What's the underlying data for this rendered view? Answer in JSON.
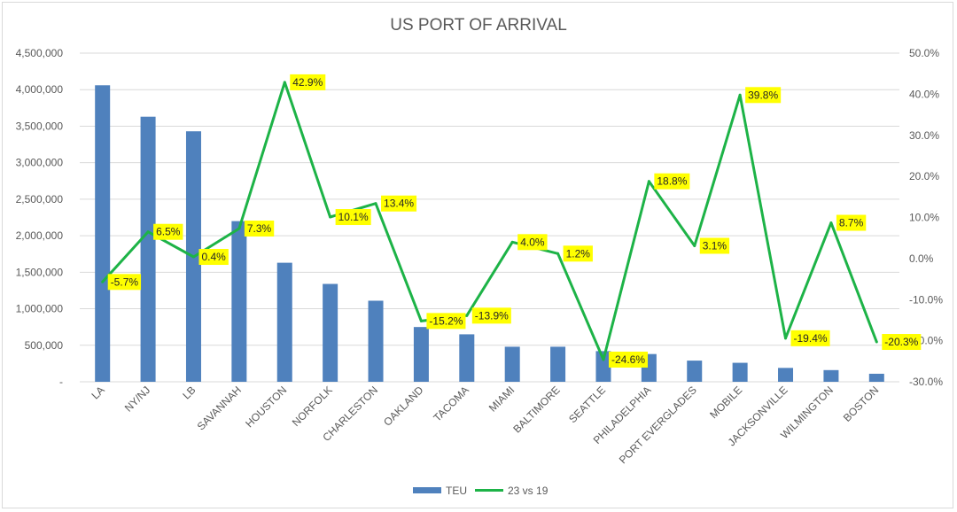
{
  "chart_data": {
    "type": "bar+line",
    "title": "US PORT OF ARRIVAL",
    "categories": [
      "LA",
      "NY/NJ",
      "LB",
      "SAVANNAH",
      "HOUSTON",
      "NORFOLK",
      "CHARLESTON",
      "OAKLAND",
      "TACOMA",
      "MIAMI",
      "BALTIMORE",
      "SEATTLE",
      "PHILADELPHIA",
      "PORT EVERGLADES",
      "MOBILE",
      "JACKSONVILLE",
      "WILMINGTON",
      "BOSTON"
    ],
    "series": [
      {
        "name": "TEU",
        "type": "bar",
        "axis": "left",
        "color": "#4f81bd",
        "values": [
          4060000,
          3630000,
          3430000,
          2200000,
          1630000,
          1340000,
          1110000,
          750000,
          650000,
          480000,
          480000,
          420000,
          380000,
          290000,
          260000,
          190000,
          160000,
          110000
        ]
      },
      {
        "name": "23 vs 19",
        "type": "line",
        "axis": "right",
        "color": "#1db347",
        "values": [
          -5.7,
          6.5,
          0.4,
          7.3,
          42.9,
          10.1,
          13.4,
          -15.2,
          -13.9,
          4.0,
          1.2,
          -24.6,
          18.8,
          3.1,
          39.8,
          -19.4,
          8.7,
          -20.3
        ],
        "labels": [
          "-5.7%",
          "6.5%",
          "0.4%",
          "7.3%",
          "42.9%",
          "10.1%",
          "13.4%",
          "-15.2%",
          "-13.9%",
          "4.0%",
          "1.2%",
          "-24.6%",
          "18.8%",
          "3.1%",
          "39.8%",
          "-19.4%",
          "8.7%",
          "-20.3%"
        ]
      }
    ],
    "left_axis": {
      "ylim": [
        0,
        4500000
      ],
      "ticks": [
        0,
        500000,
        1000000,
        1500000,
        2000000,
        2500000,
        3000000,
        3500000,
        4000000,
        4500000
      ],
      "tick_labels": [
        "-",
        "500,000",
        "1,000,000",
        "1,500,000",
        "2,000,000",
        "2,500,000",
        "3,000,000",
        "3,500,000",
        "4,000,000",
        "4,500,000"
      ]
    },
    "right_axis": {
      "ylim": [
        -30,
        50
      ],
      "ticks": [
        -30,
        -20,
        -10,
        0,
        10,
        20,
        30,
        40,
        50
      ],
      "tick_labels": [
        "-30.0%",
        "-20.0%",
        "-10.0%",
        "0.0%",
        "10.0%",
        "20.0%",
        "30.0%",
        "40.0%",
        "50.0%"
      ]
    },
    "legend": {
      "position": "bottom",
      "entries": [
        "TEU",
        "23 vs 19"
      ]
    },
    "grid": true,
    "label_highlight_color": "#ffff00",
    "gridline_color": "#d9d9d9"
  }
}
